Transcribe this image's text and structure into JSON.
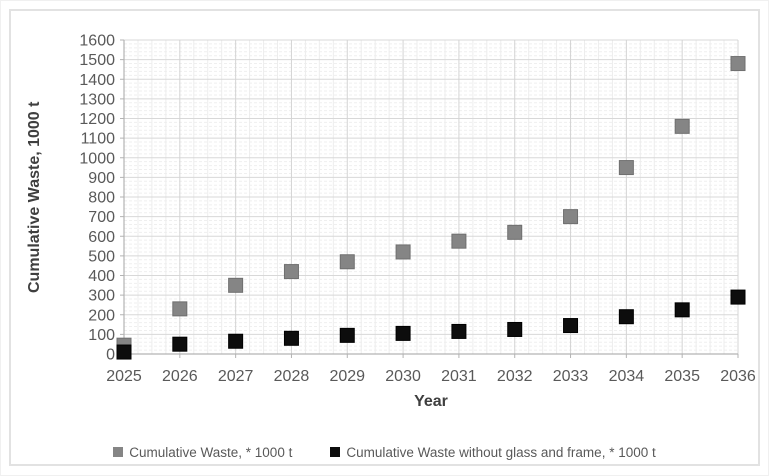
{
  "chart_data": {
    "type": "scatter",
    "title": "",
    "xlabel": "Year",
    "ylabel": "Cumulative Waste, 1000 t",
    "x": [
      2025,
      2026,
      2027,
      2028,
      2029,
      2030,
      2031,
      2032,
      2033,
      2034,
      2035,
      2036
    ],
    "series": [
      {
        "name": "Cumulative Waste, * 1000 t",
        "marker_shape": "square",
        "marker_color": "#858585",
        "marker_border": "#6f6f6f",
        "values": [
          45,
          230,
          350,
          420,
          470,
          520,
          575,
          620,
          700,
          950,
          1160,
          1480
        ]
      },
      {
        "name": "Cumulative Waste without glass and frame, * 1000 t",
        "marker_shape": "square",
        "marker_color": "#0d0d0d",
        "marker_border": "#000000",
        "values": [
          10,
          50,
          65,
          80,
          95,
          105,
          115,
          125,
          145,
          190,
          225,
          290
        ]
      }
    ],
    "ylim": [
      0,
      1600
    ],
    "yticks": [
      0,
      100,
      200,
      300,
      400,
      500,
      600,
      700,
      800,
      900,
      1000,
      1100,
      1200,
      1300,
      1400,
      1500,
      1600
    ],
    "grid": "major+minor",
    "legend_position": "bottom",
    "colors": {
      "tick_label": "#595959",
      "axis_title": "#3f3f3f",
      "axis_line": "#b3b3b3",
      "major_grid": "#d8d8d8",
      "minor_grid": "#efefef",
      "frame_border": "#e2e2e2"
    }
  }
}
